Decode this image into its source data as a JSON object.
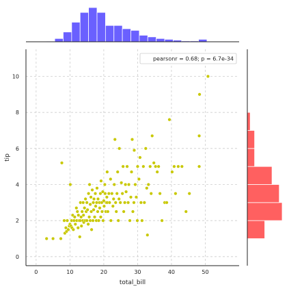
{
  "chart_data": {
    "type": "scatter",
    "xlabel": "total_bill",
    "ylabel": "tip",
    "xlim": [
      -3,
      60
    ],
    "ylim": [
      -0.5,
      11.5
    ],
    "x_ticks": [
      0,
      10,
      20,
      30,
      40,
      50
    ],
    "y_ticks": [
      0,
      2,
      4,
      6,
      8,
      10
    ],
    "grid": true,
    "annotation": "pearsonr = 0.68; p = 6.7e-34",
    "annotation_placement": "top-right",
    "colors": {
      "points": "#c8c800",
      "top_hist": "#6a60ff",
      "right_hist": "#ff6060"
    },
    "points": [
      [
        3.1,
        1.0
      ],
      [
        5.0,
        1.0
      ],
      [
        7.3,
        1.0
      ],
      [
        7.6,
        5.2
      ],
      [
        8.3,
        2.0
      ],
      [
        8.5,
        1.3
      ],
      [
        8.8,
        1.6
      ],
      [
        9.0,
        1.4
      ],
      [
        9.2,
        2.0
      ],
      [
        9.5,
        1.5
      ],
      [
        9.8,
        1.7
      ],
      [
        10.0,
        1.8
      ],
      [
        10.1,
        4.0
      ],
      [
        10.3,
        1.7
      ],
      [
        10.5,
        2.0
      ],
      [
        10.6,
        1.6
      ],
      [
        10.8,
        2.3
      ],
      [
        11.0,
        1.5
      ],
      [
        11.2,
        2.0
      ],
      [
        11.4,
        2.2
      ],
      [
        11.6,
        1.8
      ],
      [
        11.9,
        2.7
      ],
      [
        12.0,
        2.0
      ],
      [
        12.2,
        2.5
      ],
      [
        12.4,
        1.6
      ],
      [
        12.5,
        2.3
      ],
      [
        12.7,
        2.0
      ],
      [
        12.9,
        1.1
      ],
      [
        13.0,
        2.0
      ],
      [
        13.1,
        3.0
      ],
      [
        13.3,
        2.2
      ],
      [
        13.4,
        1.7
      ],
      [
        13.6,
        2.5
      ],
      [
        13.8,
        2.0
      ],
      [
        13.9,
        3.0
      ],
      [
        14.0,
        2.3
      ],
      [
        14.1,
        1.9
      ],
      [
        14.3,
        2.7
      ],
      [
        14.5,
        2.0
      ],
      [
        14.6,
        3.2
      ],
      [
        14.8,
        2.5
      ],
      [
        15.0,
        2.0
      ],
      [
        15.0,
        3.0
      ],
      [
        15.2,
        2.6
      ],
      [
        15.4,
        1.8
      ],
      [
        15.5,
        3.5
      ],
      [
        15.7,
        2.2
      ],
      [
        15.8,
        4.0
      ],
      [
        16.0,
        2.9
      ],
      [
        16.0,
        2.0
      ],
      [
        16.2,
        3.3
      ],
      [
        16.3,
        2.5
      ],
      [
        16.4,
        1.5
      ],
      [
        16.6,
        3.7
      ],
      [
        16.8,
        2.0
      ],
      [
        16.9,
        3.0
      ],
      [
        17.0,
        2.6
      ],
      [
        17.1,
        3.2
      ],
      [
        17.3,
        2.2
      ],
      [
        17.5,
        3.5
      ],
      [
        17.6,
        2.8
      ],
      [
        17.8,
        2.0
      ],
      [
        17.9,
        3.0
      ],
      [
        18.0,
        3.8
      ],
      [
        18.2,
        2.5
      ],
      [
        18.3,
        3.2
      ],
      [
        18.5,
        2.0
      ],
      [
        18.7,
        3.0
      ],
      [
        18.8,
        2.7
      ],
      [
        19.0,
        3.5
      ],
      [
        19.1,
        2.2
      ],
      [
        19.2,
        4.2
      ],
      [
        19.4,
        3.0
      ],
      [
        19.5,
        2.5
      ],
      [
        19.7,
        3.6
      ],
      [
        19.8,
        2.0
      ],
      [
        20.0,
        3.1
      ],
      [
        20.1,
        2.8
      ],
      [
        20.3,
        4.0
      ],
      [
        20.4,
        3.5
      ],
      [
        20.6,
        2.5
      ],
      [
        20.7,
        3.0
      ],
      [
        20.9,
        3.3
      ],
      [
        21.0,
        3.0
      ],
      [
        21.0,
        4.7
      ],
      [
        21.2,
        2.5
      ],
      [
        21.5,
        3.5
      ],
      [
        21.7,
        3.0
      ],
      [
        22.0,
        4.3
      ],
      [
        22.1,
        2.0
      ],
      [
        22.4,
        3.5
      ],
      [
        22.7,
        2.8
      ],
      [
        22.9,
        3.2
      ],
      [
        23.1,
        4.0
      ],
      [
        23.3,
        6.5
      ],
      [
        23.5,
        3.0
      ],
      [
        23.7,
        2.5
      ],
      [
        23.9,
        3.5
      ],
      [
        24.1,
        4.7
      ],
      [
        24.3,
        2.0
      ],
      [
        24.5,
        3.2
      ],
      [
        24.6,
        6.0
      ],
      [
        24.9,
        3.0
      ],
      [
        25.2,
        4.1
      ],
      [
        25.5,
        3.5
      ],
      [
        25.7,
        5.0
      ],
      [
        25.9,
        2.5
      ],
      [
        26.2,
        3.0
      ],
      [
        26.4,
        4.0
      ],
      [
        26.6,
        3.6
      ],
      [
        26.9,
        5.0
      ],
      [
        27.2,
        3.0
      ],
      [
        27.4,
        4.0
      ],
      [
        27.7,
        2.0
      ],
      [
        28.0,
        3.3
      ],
      [
        28.2,
        4.7
      ],
      [
        28.4,
        6.5
      ],
      [
        28.6,
        2.5
      ],
      [
        28.9,
        3.0
      ],
      [
        29.0,
        5.9
      ],
      [
        29.3,
        4.0
      ],
      [
        29.6,
        3.3
      ],
      [
        29.9,
        2.0
      ],
      [
        30.0,
        5.0
      ],
      [
        30.4,
        4.3
      ],
      [
        30.7,
        5.5
      ],
      [
        31.0,
        3.0
      ],
      [
        31.3,
        2.0
      ],
      [
        31.7,
        5.0
      ],
      [
        32.0,
        3.0
      ],
      [
        32.4,
        6.0
      ],
      [
        32.7,
        3.8
      ],
      [
        32.9,
        1.2
      ],
      [
        33.2,
        4.0
      ],
      [
        33.7,
        5.0
      ],
      [
        34.0,
        3.5
      ],
      [
        34.3,
        6.7
      ],
      [
        34.8,
        5.2
      ],
      [
        35.3,
        5.0
      ],
      [
        35.8,
        4.7
      ],
      [
        36.2,
        5.0
      ],
      [
        36.6,
        3.5
      ],
      [
        37.2,
        2.0
      ],
      [
        38.0,
        3.0
      ],
      [
        38.6,
        3.0
      ],
      [
        39.4,
        7.6
      ],
      [
        40.2,
        4.7
      ],
      [
        40.8,
        5.0
      ],
      [
        41.2,
        3.5
      ],
      [
        42.0,
        5.0
      ],
      [
        43.1,
        5.0
      ],
      [
        44.3,
        2.5
      ],
      [
        45.3,
        3.5
      ],
      [
        48.2,
        5.0
      ],
      [
        48.2,
        6.7
      ],
      [
        48.3,
        9.0
      ],
      [
        50.8,
        10.0
      ]
    ],
    "top_hist": {
      "bin_edges": [
        3,
        5.5,
        8,
        10.5,
        13,
        15.5,
        18,
        20.5,
        23,
        25.5,
        28,
        30.5,
        33,
        35.5,
        38,
        40.5,
        43,
        45.5,
        48,
        50.5,
        53
      ],
      "counts": [
        0.4,
        2,
        6,
        12,
        18,
        21,
        18,
        10,
        10,
        8,
        7,
        4,
        3,
        2,
        1.5,
        1,
        0.5,
        0.5,
        1.5,
        0.3
      ]
    },
    "right_hist": {
      "bin_edges": [
        1,
        2,
        3,
        4,
        5,
        6,
        7,
        8
      ],
      "counts": [
        12,
        24,
        22,
        17,
        5,
        5,
        2
      ]
    }
  }
}
